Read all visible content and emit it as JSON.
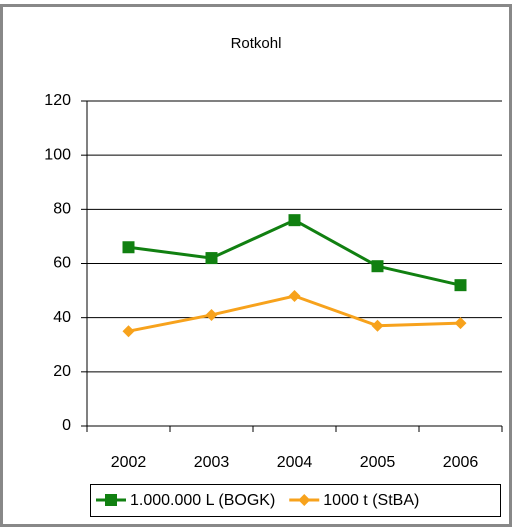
{
  "chart_data": {
    "type": "line",
    "title": "Rotkohl",
    "categories": [
      "2002",
      "2003",
      "2004",
      "2005",
      "2006"
    ],
    "series": [
      {
        "name": "1.000.000 L (BOGK)",
        "color": "#118011",
        "marker": "square",
        "values": [
          66,
          62,
          76,
          59,
          52
        ]
      },
      {
        "name": "1000 t (StBA)",
        "color": "#f7a21c",
        "marker": "diamond",
        "values": [
          35,
          41,
          48,
          37,
          38
        ]
      }
    ],
    "ylim": [
      0,
      120
    ],
    "yticks": [
      0,
      20,
      40,
      60,
      80,
      100,
      120
    ],
    "grid": true,
    "legend": "bottom"
  }
}
